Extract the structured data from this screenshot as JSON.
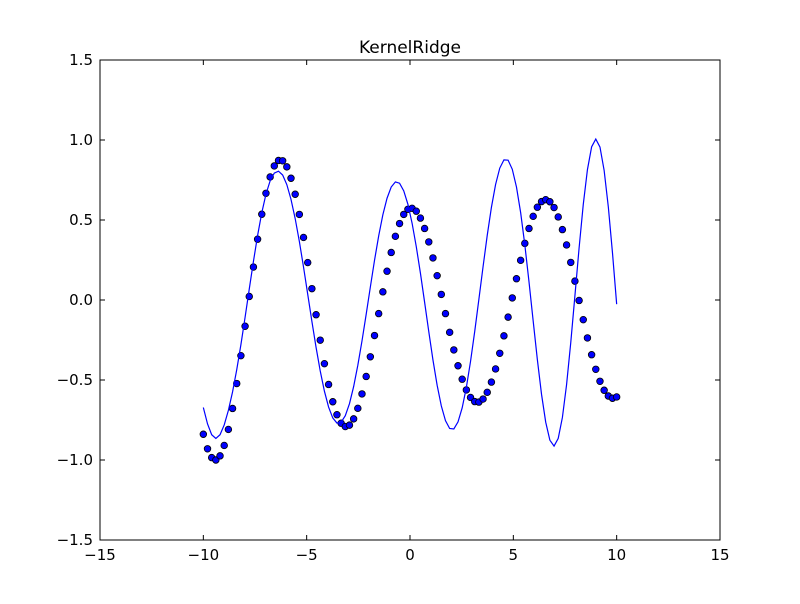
{
  "chart_data": {
    "type": "scatter",
    "title": "KernelRidge",
    "xlabel": "",
    "ylabel": "",
    "xlim": [
      -15,
      15
    ],
    "ylim": [
      -1.5,
      1.5
    ],
    "xticks": [
      -15,
      -10,
      -5,
      0,
      5,
      10,
      15
    ],
    "yticks": [
      -1.5,
      -1.0,
      -0.5,
      0.0,
      0.5,
      1.0,
      1.5
    ],
    "xtick_labels": [
      "−15",
      "−10",
      "−5",
      "0",
      "5",
      "10",
      "15"
    ],
    "ytick_labels": [
      "−1.5",
      "−1.0",
      "−0.5",
      "0.0",
      "0.5",
      "1.0",
      "1.5"
    ],
    "grid": false,
    "legend": null,
    "series": [
      {
        "kind": "scatter",
        "marker_color": "#0000ff",
        "marker_edge": "#000000",
        "x": [
          -10.0,
          -9.798,
          -9.596,
          -9.394,
          -9.192,
          -8.99,
          -8.788,
          -8.586,
          -8.384,
          -8.182,
          -7.98,
          -7.778,
          -7.576,
          -7.374,
          -7.172,
          -6.97,
          -6.768,
          -6.566,
          -6.364,
          -6.162,
          -5.96,
          -5.758,
          -5.556,
          -5.354,
          -5.152,
          -4.949,
          -4.747,
          -4.545,
          -4.343,
          -4.141,
          -3.939,
          -3.737,
          -3.535,
          -3.333,
          -3.131,
          -2.929,
          -2.727,
          -2.525,
          -2.323,
          -2.121,
          -1.919,
          -1.717,
          -1.515,
          -1.313,
          -1.111,
          -0.909,
          -0.707,
          -0.505,
          -0.303,
          -0.101,
          0.101,
          0.303,
          0.505,
          0.707,
          0.909,
          1.111,
          1.313,
          1.515,
          1.717,
          1.919,
          2.121,
          2.323,
          2.525,
          2.727,
          2.929,
          3.131,
          3.333,
          3.535,
          3.737,
          3.939,
          4.141,
          4.343,
          4.545,
          4.747,
          4.949,
          5.152,
          5.354,
          5.556,
          5.758,
          5.96,
          6.162,
          6.364,
          6.566,
          6.768,
          6.97,
          7.172,
          7.374,
          7.576,
          7.778,
          7.98,
          8.182,
          8.384,
          8.586,
          8.788,
          8.99,
          9.192,
          9.394,
          9.596,
          9.798,
          10.0
        ],
        "y": [
          -0.839,
          -0.93,
          -0.985,
          -1.0,
          -0.974,
          -0.909,
          -0.809,
          -0.678,
          -0.522,
          -0.348,
          -0.164,
          0.022,
          0.206,
          0.38,
          0.536,
          0.667,
          0.769,
          0.838,
          0.872,
          0.87,
          0.832,
          0.761,
          0.661,
          0.535,
          0.391,
          0.234,
          0.071,
          -0.092,
          -0.251,
          -0.398,
          -0.528,
          -0.636,
          -0.717,
          -0.77,
          -0.791,
          -0.782,
          -0.743,
          -0.677,
          -0.587,
          -0.478,
          -0.355,
          -0.222,
          -0.085,
          0.051,
          0.18,
          0.297,
          0.398,
          0.478,
          0.535,
          0.567,
          0.573,
          0.555,
          0.512,
          0.447,
          0.363,
          0.263,
          0.152,
          0.035,
          -0.085,
          -0.202,
          -0.312,
          -0.411,
          -0.495,
          -0.562,
          -0.609,
          -0.635,
          -0.638,
          -0.619,
          -0.577,
          -0.513,
          -0.431,
          -0.333,
          -0.224,
          -0.107,
          0.013,
          0.133,
          0.248,
          0.354,
          0.447,
          0.523,
          0.58,
          0.615,
          0.627,
          0.614,
          0.578,
          0.519,
          0.44,
          0.344,
          0.235,
          0.118,
          -0.003,
          -0.123,
          -0.237,
          -0.342,
          -0.433,
          -0.508,
          -0.564,
          -0.6,
          -0.614,
          -0.606
        ]
      },
      {
        "kind": "line",
        "color": "#0000ff",
        "x": [
          -10.0,
          -9.798,
          -9.596,
          -9.394,
          -9.192,
          -8.99,
          -8.788,
          -8.586,
          -8.384,
          -8.182,
          -7.98,
          -7.778,
          -7.576,
          -7.374,
          -7.172,
          -6.97,
          -6.768,
          -6.566,
          -6.364,
          -6.162,
          -5.96,
          -5.758,
          -5.556,
          -5.354,
          -5.152,
          -4.949,
          -4.747,
          -4.545,
          -4.343,
          -4.141,
          -3.939,
          -3.737,
          -3.535,
          -3.333,
          -3.131,
          -2.929,
          -2.727,
          -2.525,
          -2.323,
          -2.121,
          -1.919,
          -1.717,
          -1.515,
          -1.313,
          -1.111,
          -0.909,
          -0.707,
          -0.505,
          -0.303,
          -0.101,
          0.101,
          0.303,
          0.505,
          0.707,
          0.909,
          1.111,
          1.313,
          1.515,
          1.717,
          1.919,
          2.121,
          2.323,
          2.525,
          2.727,
          2.929,
          3.131,
          3.333,
          3.535,
          3.737,
          3.939,
          4.141,
          4.343,
          4.545,
          4.747,
          4.949,
          5.152,
          5.354,
          5.556,
          5.758,
          5.96,
          6.162,
          6.364,
          6.566,
          6.768,
          6.97,
          7.172,
          7.374,
          7.576,
          7.778,
          7.98,
          8.182,
          8.384,
          8.586,
          8.788,
          8.99,
          9.192,
          9.394,
          9.596,
          9.798,
          10.0
        ],
        "y": [
          -0.672,
          -0.774,
          -0.842,
          -0.865,
          -0.842,
          -0.781,
          -0.69,
          -0.574,
          -0.436,
          -0.279,
          -0.108,
          0.068,
          0.241,
          0.403,
          0.545,
          0.661,
          0.745,
          0.793,
          0.805,
          0.781,
          0.721,
          0.629,
          0.509,
          0.366,
          0.206,
          0.036,
          -0.134,
          -0.296,
          -0.444,
          -0.57,
          -0.669,
          -0.737,
          -0.769,
          -0.764,
          -0.723,
          -0.648,
          -0.541,
          -0.408,
          -0.256,
          -0.09,
          0.081,
          0.248,
          0.401,
          0.533,
          0.636,
          0.706,
          0.738,
          0.73,
          0.682,
          0.598,
          0.48,
          0.334,
          0.167,
          -0.014,
          -0.198,
          -0.375,
          -0.533,
          -0.662,
          -0.754,
          -0.803,
          -0.806,
          -0.762,
          -0.674,
          -0.546,
          -0.384,
          -0.197,
          0.004,
          0.208,
          0.404,
          0.579,
          0.722,
          0.824,
          0.876,
          0.874,
          0.817,
          0.706,
          0.546,
          0.345,
          0.114,
          -0.131,
          -0.372,
          -0.589,
          -0.763,
          -0.876,
          -0.913,
          -0.865,
          -0.734,
          -0.529,
          -0.267,
          0.027,
          0.325,
          0.597,
          0.815,
          0.957,
          1.006,
          0.956,
          0.81,
          0.582,
          0.294,
          -0.026
        ]
      }
    ]
  }
}
